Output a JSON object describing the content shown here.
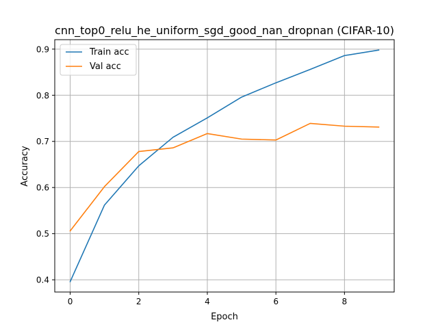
{
  "chart_data": {
    "type": "line",
    "title": "cnn_top0_relu_he_uniform_sgd_good_nan_dropnan (CIFAR-10)",
    "xlabel": "Epoch",
    "ylabel": "Accuracy",
    "x": [
      0,
      1,
      2,
      3,
      4,
      5,
      6,
      7,
      8,
      9
    ],
    "xlim": [
      -0.45,
      9.45
    ],
    "ylim": [
      0.3735,
      0.9205
    ],
    "xticks": [
      0,
      2,
      4,
      6,
      8
    ],
    "yticks": [
      0.4,
      0.5,
      0.6,
      0.7,
      0.8,
      0.9
    ],
    "xtick_labels": [
      "0",
      "2",
      "4",
      "6",
      "8"
    ],
    "ytick_labels": [
      "0.4",
      "0.5",
      "0.6",
      "0.7",
      "0.8",
      "0.9"
    ],
    "grid": true,
    "legend_position": "top-left",
    "series": [
      {
        "name": "Train acc",
        "color": "#1f77b4",
        "values": [
          0.396,
          0.562,
          0.647,
          0.709,
          0.751,
          0.796,
          0.827,
          0.856,
          0.886,
          0.898
        ]
      },
      {
        "name": "Val acc",
        "color": "#ff7f0e",
        "values": [
          0.506,
          0.602,
          0.678,
          0.686,
          0.717,
          0.705,
          0.703,
          0.739,
          0.733,
          0.731
        ]
      }
    ]
  }
}
